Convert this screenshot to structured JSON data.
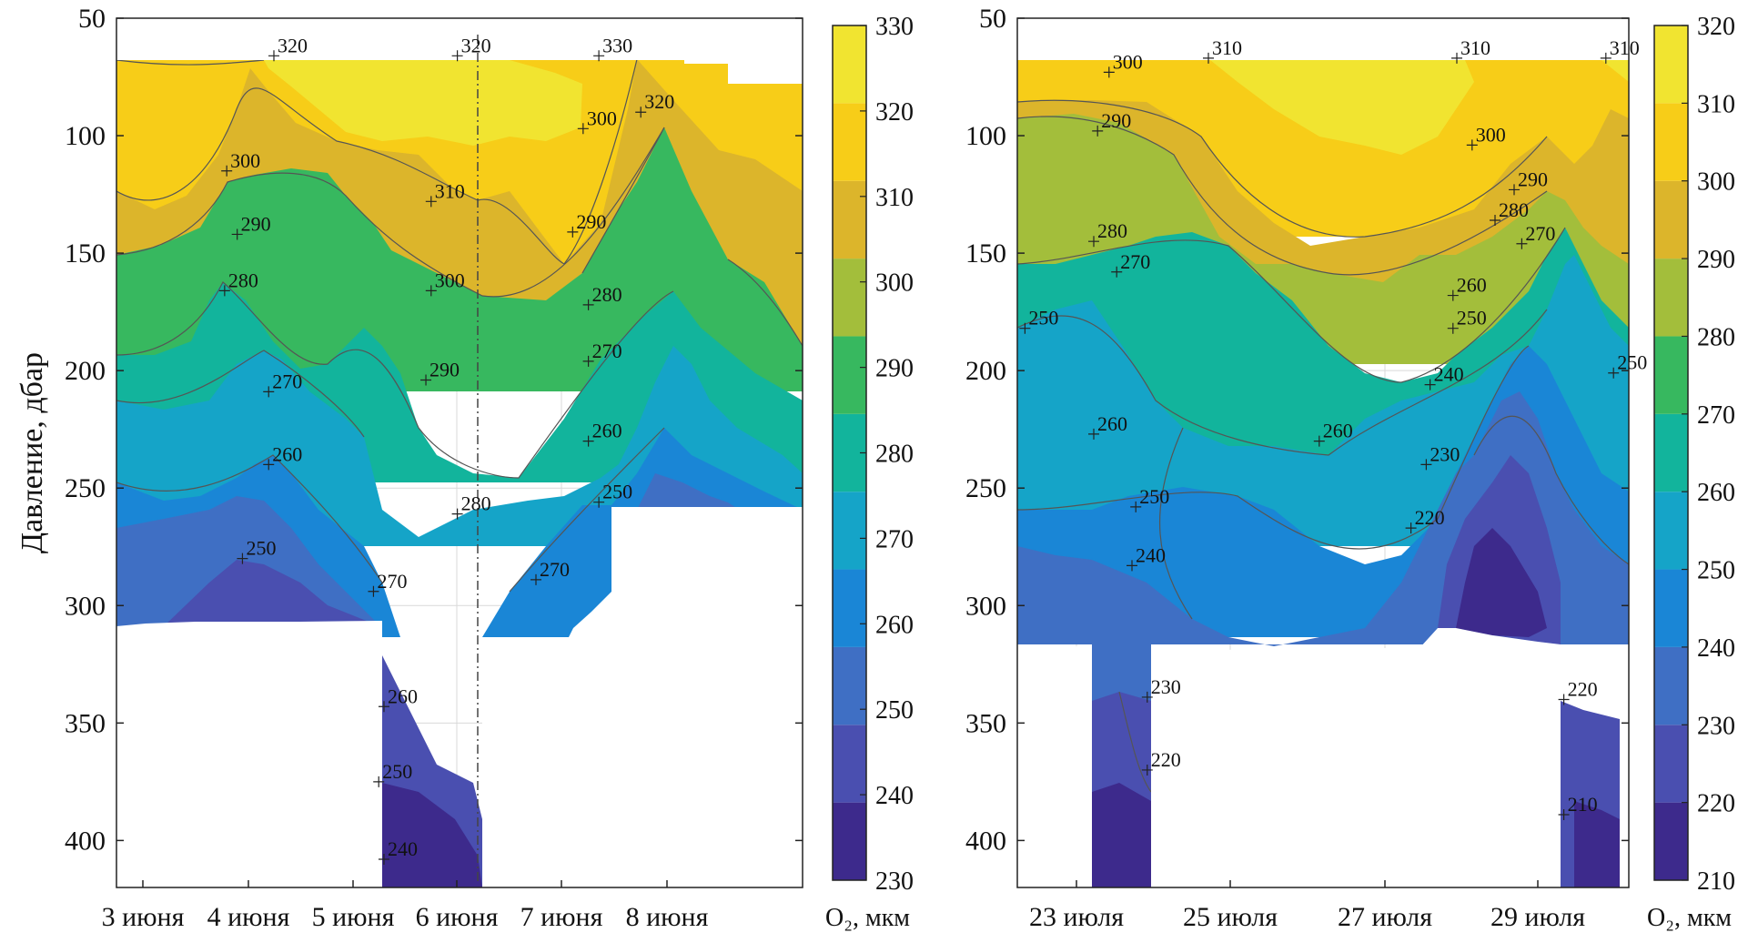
{
  "chart_data": [
    {
      "type": "heatmap",
      "subtype": "filled-contour-section",
      "ylabel": "Давление, дбар",
      "y_reversed": true,
      "ylim": [
        50,
        420
      ],
      "yticks": [
        50,
        100,
        150,
        200,
        250,
        300,
        350,
        400
      ],
      "xticks": [
        "3 июня",
        "4 июня",
        "5 июня",
        "6 июня",
        "7 июня",
        "8 июня"
      ],
      "grid": true,
      "colorbar": {
        "label": "O₂, мкм",
        "min": 230,
        "max": 330,
        "step": 10,
        "ticks": [
          230,
          240,
          250,
          260,
          270,
          280,
          290,
          300,
          310,
          320,
          330
        ],
        "colors": [
          "#3d2a8c",
          "#4a4fb0",
          "#3f6fc4",
          "#1a86d6",
          "#15a4c8",
          "#12b49c",
          "#37b85f",
          "#a3be3b",
          "#dcb52b",
          "#f7cd18",
          "#f1e430"
        ]
      },
      "contour_labels": [
        {
          "x": 1.25,
          "y": 66,
          "label": "320"
        },
        {
          "x": 3.0,
          "y": 66,
          "label": "320"
        },
        {
          "x": 4.35,
          "y": 66,
          "label": "330"
        },
        {
          "x": 4.75,
          "y": 90,
          "label": "320"
        },
        {
          "x": 0.8,
          "y": 115,
          "label": "300"
        },
        {
          "x": 2.75,
          "y": 128,
          "label": "310"
        },
        {
          "x": 4.2,
          "y": 97,
          "label": "300"
        },
        {
          "x": 0.9,
          "y": 142,
          "label": "290"
        },
        {
          "x": 4.1,
          "y": 141,
          "label": "290"
        },
        {
          "x": 0.78,
          "y": 166,
          "label": "280"
        },
        {
          "x": 2.75,
          "y": 166,
          "label": "300"
        },
        {
          "x": 4.25,
          "y": 172,
          "label": "280"
        },
        {
          "x": 1.2,
          "y": 209,
          "label": "270"
        },
        {
          "x": 2.7,
          "y": 204,
          "label": "290"
        },
        {
          "x": 4.25,
          "y": 196,
          "label": "270"
        },
        {
          "x": 1.2,
          "y": 240,
          "label": "260"
        },
        {
          "x": 4.25,
          "y": 230,
          "label": "260"
        },
        {
          "x": 0.95,
          "y": 280,
          "label": "250"
        },
        {
          "x": 3.0,
          "y": 261,
          "label": "280"
        },
        {
          "x": 4.35,
          "y": 256,
          "label": "250"
        },
        {
          "x": 2.2,
          "y": 294,
          "label": "270"
        },
        {
          "x": 3.75,
          "y": 289,
          "label": "270"
        },
        {
          "x": 2.3,
          "y": 343,
          "label": "260"
        },
        {
          "x": 2.25,
          "y": 375,
          "label": "250"
        },
        {
          "x": 2.3,
          "y": 408,
          "label": "240"
        }
      ]
    },
    {
      "type": "heatmap",
      "subtype": "filled-contour-section",
      "ylabel": "",
      "y_reversed": true,
      "ylim": [
        50,
        420
      ],
      "yticks": [
        50,
        100,
        150,
        200,
        250,
        300,
        350,
        400
      ],
      "xticks": [
        "23 июля",
        "25 июля",
        "27 июля",
        "29 июля"
      ],
      "grid": true,
      "colorbar": {
        "label": "O₂, мкм",
        "min": 210,
        "max": 320,
        "step": 10,
        "ticks": [
          210,
          220,
          230,
          240,
          250,
          260,
          270,
          280,
          290,
          300,
          310,
          320
        ],
        "colors": [
          "#3d2a8c",
          "#4a4fb0",
          "#3f6fc4",
          "#1a86d6",
          "#15a4c8",
          "#12b49c",
          "#37b85f",
          "#a3be3b",
          "#dcb52b",
          "#f7cd18",
          "#f1e430"
        ]
      },
      "contour_labels": [
        {
          "x": 1.2,
          "y": 73,
          "label": "300"
        },
        {
          "x": 2.5,
          "y": 67,
          "label": "310"
        },
        {
          "x": 5.75,
          "y": 67,
          "label": "310"
        },
        {
          "x": 7.7,
          "y": 67,
          "label": "310"
        },
        {
          "x": 1.05,
          "y": 98,
          "label": "290"
        },
        {
          "x": 5.95,
          "y": 104,
          "label": "300"
        },
        {
          "x": 6.5,
          "y": 123,
          "label": "290"
        },
        {
          "x": 1.0,
          "y": 145,
          "label": "280"
        },
        {
          "x": 1.3,
          "y": 158,
          "label": "270"
        },
        {
          "x": 6.25,
          "y": 136,
          "label": "280"
        },
        {
          "x": 6.6,
          "y": 146,
          "label": "270"
        },
        {
          "x": 0.1,
          "y": 182,
          "label": "250"
        },
        {
          "x": 5.7,
          "y": 168,
          "label": "260"
        },
        {
          "x": 5.7,
          "y": 182,
          "label": "250"
        },
        {
          "x": 7.8,
          "y": 201,
          "label": "250"
        },
        {
          "x": 5.4,
          "y": 206,
          "label": "240"
        },
        {
          "x": 1.0,
          "y": 227,
          "label": "260"
        },
        {
          "x": 3.95,
          "y": 230,
          "label": "260"
        },
        {
          "x": 5.35,
          "y": 240,
          "label": "230"
        },
        {
          "x": 1.55,
          "y": 258,
          "label": "250"
        },
        {
          "x": 5.15,
          "y": 267,
          "label": "220"
        },
        {
          "x": 1.5,
          "y": 283,
          "label": "240"
        },
        {
          "x": 1.7,
          "y": 339,
          "label": "230"
        },
        {
          "x": 1.7,
          "y": 370,
          "label": "220"
        },
        {
          "x": 7.15,
          "y": 340,
          "label": "220"
        },
        {
          "x": 7.15,
          "y": 389,
          "label": "210"
        }
      ]
    }
  ]
}
